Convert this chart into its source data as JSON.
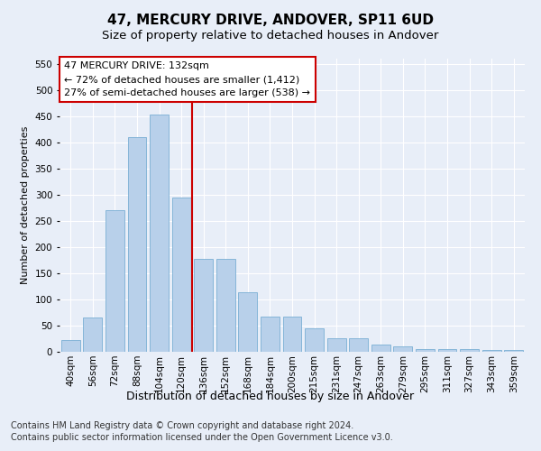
{
  "title_line1": "47, MERCURY DRIVE, ANDOVER, SP11 6UD",
  "title_line2": "Size of property relative to detached houses in Andover",
  "xlabel": "Distribution of detached houses by size in Andover",
  "ylabel": "Number of detached properties",
  "footnote": "Contains HM Land Registry data © Crown copyright and database right 2024.\nContains public sector information licensed under the Open Government Licence v3.0.",
  "categories": [
    "40sqm",
    "56sqm",
    "72sqm",
    "88sqm",
    "104sqm",
    "120sqm",
    "136sqm",
    "152sqm",
    "168sqm",
    "184sqm",
    "200sqm",
    "215sqm",
    "231sqm",
    "247sqm",
    "263sqm",
    "279sqm",
    "295sqm",
    "311sqm",
    "327sqm",
    "343sqm",
    "359sqm"
  ],
  "values": [
    22,
    65,
    270,
    410,
    453,
    295,
    178,
    178,
    113,
    68,
    67,
    44,
    25,
    25,
    14,
    11,
    6,
    6,
    5,
    4,
    3
  ],
  "bar_color": "#b8d0ea",
  "bar_edge_color": "#7aafd4",
  "vline_x": 5.5,
  "vline_color": "#cc0000",
  "annotation_text": "47 MERCURY DRIVE: 132sqm\n← 72% of detached houses are smaller (1,412)\n27% of semi-detached houses are larger (538) →",
  "annotation_box_color": "#ffffff",
  "annotation_box_edge_color": "#cc0000",
  "ylim": [
    0,
    560
  ],
  "yticks": [
    0,
    50,
    100,
    150,
    200,
    250,
    300,
    350,
    400,
    450,
    500,
    550
  ],
  "background_color": "#e8eef8",
  "grid_color": "#ffffff",
  "title1_fontsize": 11,
  "title2_fontsize": 9.5,
  "xlabel_fontsize": 9,
  "ylabel_fontsize": 8,
  "tick_fontsize": 7.5,
  "annotation_fontsize": 8,
  "footnote_fontsize": 7
}
